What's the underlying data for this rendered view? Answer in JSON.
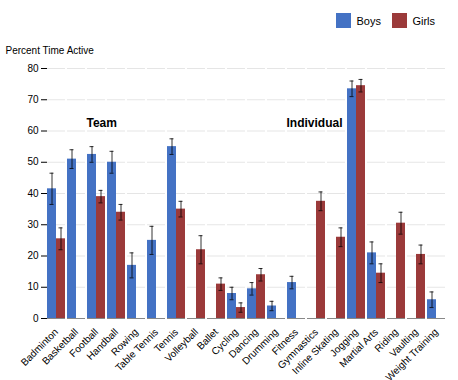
{
  "chart_data": {
    "type": "bar",
    "categories": [
      "Badminton",
      "Basketball",
      "Football",
      "Handball",
      "Rowing",
      "Table Tennis",
      "Tennis",
      "Volleyball",
      "Ballet",
      "Cycling",
      "Dancing",
      "Drumming",
      "Fitness",
      "Gymnastics",
      "Inline Skating",
      "Jogging",
      "Martial Arts",
      "Riding",
      "Vaulting",
      "Weight Training"
    ],
    "series": [
      {
        "name": "Boys",
        "color": "#4472C4",
        "values": [
          41.5,
          51.0,
          52.5,
          50.0,
          17.0,
          25.0,
          55.0,
          0.0,
          0.0,
          8.0,
          9.5,
          4.0,
          11.5,
          0.0,
          0.0,
          73.5,
          21.0,
          0.0,
          0.0,
          6.0
        ],
        "errors": [
          5.0,
          3.0,
          2.5,
          3.5,
          4.0,
          4.5,
          2.5,
          0.0,
          0.0,
          2.0,
          2.0,
          1.5,
          2.0,
          0.0,
          0.0,
          2.5,
          3.5,
          0.0,
          0.0,
          2.5
        ]
      },
      {
        "name": "Girls",
        "color": "#9B3A3A",
        "values": [
          25.5,
          0.0,
          39.0,
          34.0,
          0.0,
          0.0,
          35.0,
          22.0,
          11.0,
          3.5,
          14.0,
          0.0,
          0.0,
          37.5,
          26.0,
          74.5,
          14.5,
          30.5,
          20.5,
          0.0
        ],
        "errors": [
          3.5,
          0.0,
          2.0,
          2.5,
          0.0,
          0.0,
          2.5,
          4.5,
          2.0,
          1.5,
          2.0,
          0.0,
          0.0,
          3.0,
          3.0,
          2.0,
          3.0,
          3.5,
          3.0,
          0.0
        ]
      }
    ],
    "ylabel": "Percent Time Active",
    "ylim": [
      0,
      80
    ],
    "yticks": [
      0,
      10,
      20,
      30,
      40,
      50,
      60,
      70,
      80
    ],
    "grid": true,
    "legend": "upper right",
    "annotations": [
      {
        "text": "Team",
        "x": 1.5,
        "y": 64
      },
      {
        "text": "Individual",
        "x": 11.5,
        "y": 64
      }
    ]
  }
}
